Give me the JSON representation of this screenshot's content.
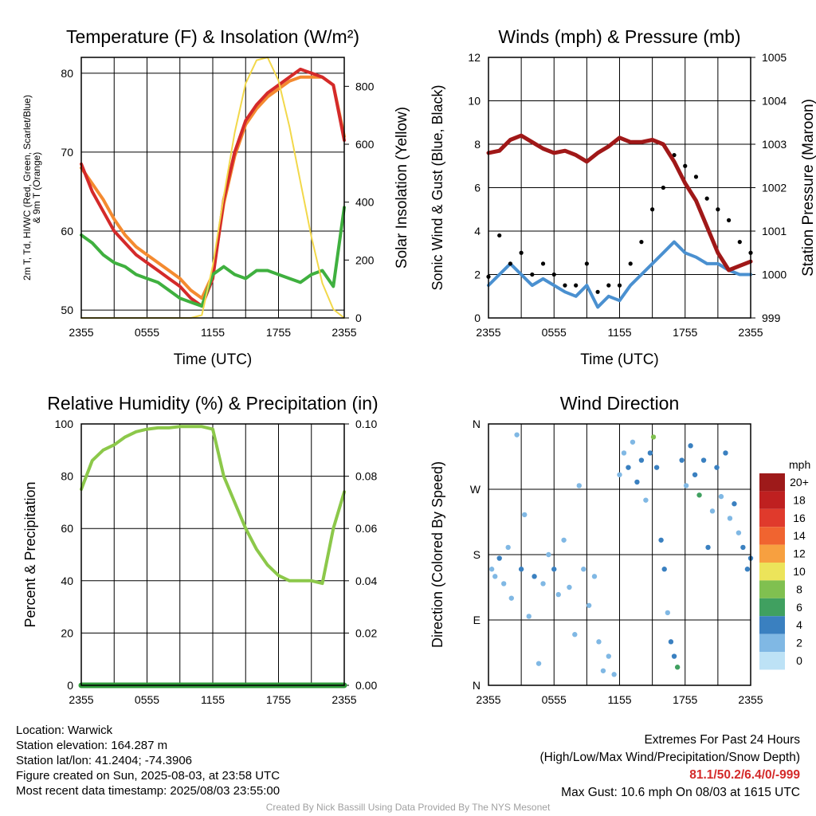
{
  "panels": [
    {
      "title": "Temperature (F) & Insolation (W/m²)",
      "xlabel": "Time (UTC)",
      "ylabel_left": [
        "2m T, Td, HI/WC (Red, Green, Scarlet/Blue)",
        "& 9m T (Orange)"
      ],
      "ylabel_right": "Solar Insolation (Yellow)",
      "xticks": [
        "2355",
        "0555",
        "1155",
        "1755",
        "2355"
      ],
      "yticks_left": [
        "50",
        "60",
        "70",
        "80"
      ],
      "yticks_right": [
        "0",
        "200",
        "400",
        "600",
        "800"
      ]
    },
    {
      "title": "Winds (mph) & Pressure (mb)",
      "xlabel": "Time (UTC)",
      "ylabel_left": [
        "Sonic Wind & Gust (Blue, Black)"
      ],
      "ylabel_right": "Station Pressure (Maroon)",
      "xticks": [
        "2355",
        "0555",
        "1155",
        "1755",
        "2355"
      ],
      "yticks_left": [
        "0",
        "2",
        "4",
        "6",
        "8",
        "10",
        "12"
      ],
      "yticks_right": [
        "999",
        "1000",
        "1001",
        "1002",
        "1003",
        "1004",
        "1005"
      ]
    },
    {
      "title": "Relative Humidity (%) & Precipitation (in)",
      "xlabel": "",
      "ylabel_left": [
        "Percent & Precipitation"
      ],
      "ylabel_right": "",
      "xticks": [
        "2355",
        "0555",
        "1155",
        "1755",
        "2355"
      ],
      "yticks_left": [
        "0",
        "20",
        "40",
        "60",
        "80",
        "100"
      ],
      "yticks_right": [
        "0.00",
        "0.02",
        "0.04",
        "0.06",
        "0.08",
        "0.10"
      ]
    },
    {
      "title": "Wind Direction",
      "xlabel": "",
      "ylabel_left": [
        "Direction (Colored By Speed)"
      ],
      "ylabel_right": "",
      "xticks": [
        "2355",
        "0555",
        "1155",
        "1755",
        "2355"
      ],
      "yticks_left": [
        "N",
        "E",
        "S",
        "W",
        "N"
      ],
      "yticks_right": []
    }
  ],
  "legend": {
    "title": "mph",
    "labels": [
      "20+",
      "18",
      "16",
      "14",
      "12",
      "10",
      "8",
      "6",
      "4",
      "2",
      "0"
    ],
    "colors": [
      "#9e1a1a",
      "#bf2020",
      "#e03a2c",
      "#f06430",
      "#f7a040",
      "#ece45a",
      "#80c050",
      "#40a060",
      "#3a80c0",
      "#80b8e4",
      "#bde2f6"
    ]
  },
  "colors": {
    "temperature": "#d42a2a",
    "dewpoint": "#3fb03f",
    "ninem_temp": "#f48a30",
    "insolation": "#f2d84a",
    "wind": "#4a90d0",
    "gust": "#000000",
    "pressure": "#a01818",
    "rh": "#8cc84a",
    "precip": "#2f9a3a"
  },
  "chart_data": [
    {
      "type": "line",
      "title": "Temperature (F) & Insolation (W/m²)",
      "xlabel": "Time (UTC)",
      "ylim": [
        49,
        82
      ],
      "y2lim": [
        0,
        900
      ],
      "x": [
        0,
        1,
        2,
        3,
        4,
        5,
        6,
        7,
        8,
        9,
        10,
        11,
        12,
        13,
        14,
        15,
        16,
        17,
        18,
        19,
        20,
        21,
        22,
        23,
        24
      ],
      "series": [
        {
          "name": "2m T",
          "axis": "left",
          "values": [
            68.5,
            65,
            62.5,
            60,
            58.5,
            57,
            56,
            55,
            54,
            53,
            51.5,
            50.5,
            54,
            64,
            70,
            74,
            76,
            77.5,
            78.5,
            79.5,
            80.5,
            80,
            79.5,
            78.5,
            71.5
          ]
        },
        {
          "name": "9m T",
          "axis": "left",
          "values": [
            68,
            66,
            64,
            61.5,
            59.5,
            58,
            57,
            56,
            55,
            54,
            52.5,
            51.5,
            54.5,
            63.5,
            69.5,
            73.5,
            75.5,
            77,
            78,
            79,
            79.5,
            79.5,
            79.5,
            78.5,
            72
          ]
        },
        {
          "name": "Td",
          "axis": "left",
          "values": [
            59.5,
            58.5,
            57,
            56,
            55.5,
            54.5,
            54,
            53.5,
            52.5,
            51.5,
            51,
            50.5,
            54.5,
            55.5,
            54.5,
            54,
            55,
            55,
            54.5,
            54,
            53.5,
            54.5,
            55,
            53,
            63
          ]
        },
        {
          "name": "Insolation",
          "axis": "right",
          "values": [
            0,
            0,
            0,
            0,
            0,
            0,
            0,
            0,
            0,
            0,
            0,
            10,
            180,
            420,
            640,
            810,
            890,
            900,
            820,
            660,
            470,
            280,
            120,
            30,
            0
          ]
        }
      ]
    },
    {
      "type": "line",
      "title": "Winds (mph) & Pressure (mb)",
      "xlabel": "Time (UTC)",
      "ylim": [
        0,
        12
      ],
      "y2lim": [
        999,
        1005
      ],
      "x": [
        0,
        1,
        2,
        3,
        4,
        5,
        6,
        7,
        8,
        9,
        10,
        11,
        12,
        13,
        14,
        15,
        16,
        17,
        18,
        19,
        20,
        21,
        22,
        23,
        24
      ],
      "series": [
        {
          "name": "Sonic Wind",
          "axis": "left",
          "values": [
            1.5,
            2,
            2.5,
            2,
            1.5,
            1.8,
            1.5,
            1.2,
            1,
            1.5,
            0.5,
            1,
            0.8,
            1.5,
            2,
            2.5,
            3,
            3.5,
            3,
            2.8,
            2.5,
            2.5,
            2.2,
            2,
            2
          ]
        },
        {
          "name": "Gust",
          "axis": "left",
          "values": [
            1.9,
            3.8,
            2.5,
            3,
            2,
            2.5,
            2,
            1.5,
            1.5,
            2.5,
            1.2,
            1.5,
            1.5,
            2.5,
            3.5,
            5,
            6,
            7.5,
            7,
            6.5,
            5.5,
            5,
            4.5,
            3.5,
            3
          ]
        },
        {
          "name": "Station Pressure",
          "axis": "right",
          "values": [
            1002.8,
            1002.85,
            1003.1,
            1003.2,
            1003.05,
            1002.9,
            1002.8,
            1002.85,
            1002.75,
            1002.6,
            1002.8,
            1002.95,
            1003.15,
            1003.05,
            1003.05,
            1003.1,
            1003.0,
            1002.6,
            1002.1,
            1001.7,
            1001.1,
            1000.5,
            1000.1,
            1000.2,
            1000.3
          ]
        }
      ]
    },
    {
      "type": "line",
      "title": "Relative Humidity (%) & Precipitation (in)",
      "ylim": [
        0,
        100
      ],
      "y2lim": [
        0,
        0.1
      ],
      "x": [
        0,
        1,
        2,
        3,
        4,
        5,
        6,
        7,
        8,
        9,
        10,
        11,
        12,
        13,
        14,
        15,
        16,
        17,
        18,
        19,
        20,
        21,
        22,
        23,
        24
      ],
      "series": [
        {
          "name": "Relative Humidity",
          "axis": "left",
          "values": [
            75,
            86,
            90,
            92,
            95,
            97,
            98,
            98.5,
            98.5,
            99,
            99,
            99,
            98,
            80,
            70,
            60,
            52,
            46,
            42,
            40,
            40,
            40,
            39,
            60,
            74
          ]
        },
        {
          "name": "Precipitation",
          "axis": "right",
          "values": [
            0,
            0,
            0,
            0,
            0,
            0,
            0,
            0,
            0,
            0,
            0,
            0,
            0,
            0,
            0,
            0,
            0,
            0,
            0,
            0,
            0,
            0,
            0,
            0,
            0
          ]
        }
      ]
    },
    {
      "type": "scatter",
      "title": "Wind Direction",
      "ylim": [
        0,
        360
      ],
      "yticks": [
        "N",
        "E",
        "S",
        "W",
        "N"
      ],
      "points": [
        {
          "x": 0.3,
          "dir": 160,
          "speed": 1
        },
        {
          "x": 0.6,
          "dir": 150,
          "speed": 2
        },
        {
          "x": 1.0,
          "dir": 175,
          "speed": 3
        },
        {
          "x": 1.4,
          "dir": 140,
          "speed": 2
        },
        {
          "x": 1.8,
          "dir": 190,
          "speed": 1
        },
        {
          "x": 2.1,
          "dir": 120,
          "speed": 2
        },
        {
          "x": 2.6,
          "dir": 345,
          "speed": 1
        },
        {
          "x": 3.0,
          "dir": 160,
          "speed": 3
        },
        {
          "x": 3.3,
          "dir": 235,
          "speed": 1
        },
        {
          "x": 3.7,
          "dir": 95,
          "speed": 2
        },
        {
          "x": 4.2,
          "dir": 150,
          "speed": 3
        },
        {
          "x": 4.6,
          "dir": 30,
          "speed": 1
        },
        {
          "x": 5.0,
          "dir": 140,
          "speed": 2
        },
        {
          "x": 5.5,
          "dir": 180,
          "speed": 2
        },
        {
          "x": 6.0,
          "dir": 160,
          "speed": 3
        },
        {
          "x": 6.4,
          "dir": 125,
          "speed": 1
        },
        {
          "x": 6.9,
          "dir": 200,
          "speed": 2
        },
        {
          "x": 7.4,
          "dir": 135,
          "speed": 2
        },
        {
          "x": 7.9,
          "dir": 70,
          "speed": 1
        },
        {
          "x": 8.3,
          "dir": 275,
          "speed": 1
        },
        {
          "x": 8.7,
          "dir": 160,
          "speed": 2
        },
        {
          "x": 9.2,
          "dir": 110,
          "speed": 1
        },
        {
          "x": 9.7,
          "dir": 150,
          "speed": 2
        },
        {
          "x": 10.1,
          "dir": 60,
          "speed": 1
        },
        {
          "x": 10.5,
          "dir": 20,
          "speed": 2
        },
        {
          "x": 11.0,
          "dir": 40,
          "speed": 1
        },
        {
          "x": 11.5,
          "dir": 15,
          "speed": 2
        },
        {
          "x": 12.0,
          "dir": 290,
          "speed": 2
        },
        {
          "x": 12.4,
          "dir": 320,
          "speed": 1
        },
        {
          "x": 12.8,
          "dir": 300,
          "speed": 3
        },
        {
          "x": 13.2,
          "dir": 335,
          "speed": 2
        },
        {
          "x": 13.6,
          "dir": 280,
          "speed": 3
        },
        {
          "x": 14.0,
          "dir": 310,
          "speed": 4
        },
        {
          "x": 14.4,
          "dir": 255,
          "speed": 2
        },
        {
          "x": 14.8,
          "dir": 320,
          "speed": 4
        },
        {
          "x": 15.1,
          "dir": 342,
          "speed": 7
        },
        {
          "x": 15.4,
          "dir": 300,
          "speed": 3
        },
        {
          "x": 15.8,
          "dir": 200,
          "speed": 4
        },
        {
          "x": 16.1,
          "dir": 160,
          "speed": 3
        },
        {
          "x": 16.4,
          "dir": 100,
          "speed": 2
        },
        {
          "x": 16.7,
          "dir": 60,
          "speed": 3
        },
        {
          "x": 17.0,
          "dir": 40,
          "speed": 4
        },
        {
          "x": 17.3,
          "dir": 25,
          "speed": 6
        },
        {
          "x": 17.7,
          "dir": 310,
          "speed": 3
        },
        {
          "x": 18.1,
          "dir": 275,
          "speed": 2
        },
        {
          "x": 18.5,
          "dir": 330,
          "speed": 3
        },
        {
          "x": 18.9,
          "dir": 290,
          "speed": 4
        },
        {
          "x": 19.3,
          "dir": 262,
          "speed": 6
        },
        {
          "x": 19.7,
          "dir": 310,
          "speed": 3
        },
        {
          "x": 20.1,
          "dir": 190,
          "speed": 3
        },
        {
          "x": 20.5,
          "dir": 240,
          "speed": 2
        },
        {
          "x": 20.9,
          "dir": 300,
          "speed": 3
        },
        {
          "x": 21.3,
          "dir": 260,
          "speed": 2
        },
        {
          "x": 21.7,
          "dir": 320,
          "speed": 3
        },
        {
          "x": 22.1,
          "dir": 230,
          "speed": 2
        },
        {
          "x": 22.5,
          "dir": 250,
          "speed": 3
        },
        {
          "x": 22.9,
          "dir": 210,
          "speed": 2
        },
        {
          "x": 23.3,
          "dir": 190,
          "speed": 3
        },
        {
          "x": 23.7,
          "dir": 160,
          "speed": 4
        },
        {
          "x": 24.0,
          "dir": 175,
          "speed": 3
        }
      ]
    }
  ],
  "footer": {
    "location": "Location: Warwick",
    "elevation": "Station elevation: 164.287 m",
    "latlon": "Station lat/lon: 41.2404; -74.3906",
    "created": "Figure created on Sun, 2025-08-03, at 23:58 UTC",
    "recent": "Most recent data timestamp: 2025/08/03 23:55:00",
    "extremes_title": "Extremes For Past 24 Hours",
    "extremes_sub": "(High/Low/Max Wind/Precipitation/Snow Depth)",
    "extremes_values": "81.1/50.2/6.4/0/-999",
    "max_gust": "Max Gust: 10.6 mph On 08/03 at 1615 UTC",
    "credit": "Created By Nick Bassill Using Data Provided By The NYS Mesonet"
  }
}
